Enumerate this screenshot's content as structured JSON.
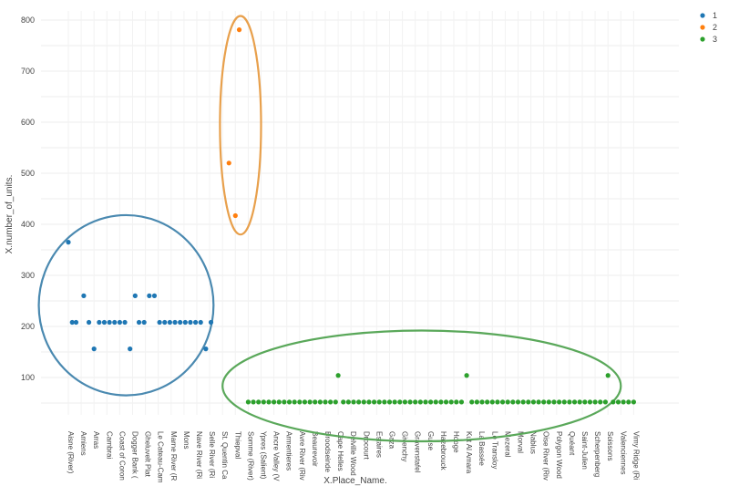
{
  "chart_data": {
    "type": "scatter",
    "xlabel": "X.Place_Name.",
    "ylabel": "X.number_of_units.",
    "ylim": [
      0,
      810
    ],
    "yticks": [
      100,
      200,
      300,
      400,
      500,
      600,
      700,
      800
    ],
    "grid": true,
    "legend_position": "top-right",
    "categories": [
      "Aisne (River)",
      "Amiens",
      "Arras",
      "Cambrai",
      "Coast of Coron",
      "Dogger Bank (",
      "Gheluvelt Plat",
      "Le Cateau-Cam",
      "Marne River (R",
      "Mons",
      "Nave River (Ri",
      "Selle River (Ri",
      "St. Quentin Ca",
      "Thiepval",
      "Somme (River)",
      "Ypres (Salient)",
      "Ancre Valley (V",
      "Armentieres",
      "Avre River (Riv",
      "Beaurevoir",
      "Broodseinde",
      "Cape Helles",
      "Delville Wood",
      "Drocourt",
      "Estaires",
      "Gaza",
      "Givenchy",
      "Gravenstafel",
      "Guise",
      "Hazebrouck",
      "Hooge",
      "Kut Al Amara",
      "La Bassée",
      "Le Transloy",
      "Mezeral",
      "Morval",
      "Nablus",
      "Oise River (Riv",
      "Polygon Wood",
      "Quéant",
      "Saint-Julien",
      "Scherpenberg",
      "Soissons",
      "Valenciennes",
      "Vimy Ridge (Ri"
    ],
    "series": [
      {
        "name": "1",
        "color": "#1f77b4",
        "points": [
          {
            "x": 0.0,
            "y": 365
          },
          {
            "x": 0.3,
            "y": 208
          },
          {
            "x": 0.6,
            "y": 208
          },
          {
            "x": 1.2,
            "y": 260
          },
          {
            "x": 1.6,
            "y": 208
          },
          {
            "x": 2.0,
            "y": 156
          },
          {
            "x": 2.4,
            "y": 208
          },
          {
            "x": 2.8,
            "y": 208
          },
          {
            "x": 3.2,
            "y": 208
          },
          {
            "x": 3.6,
            "y": 208
          },
          {
            "x": 4.0,
            "y": 208
          },
          {
            "x": 4.4,
            "y": 208
          },
          {
            "x": 4.8,
            "y": 156
          },
          {
            "x": 5.2,
            "y": 260
          },
          {
            "x": 5.5,
            "y": 208
          },
          {
            "x": 5.9,
            "y": 208
          },
          {
            "x": 6.3,
            "y": 260
          },
          {
            "x": 6.7,
            "y": 260
          },
          {
            "x": 7.1,
            "y": 208
          },
          {
            "x": 7.5,
            "y": 208
          },
          {
            "x": 7.9,
            "y": 208
          },
          {
            "x": 8.3,
            "y": 208
          },
          {
            "x": 8.7,
            "y": 208
          },
          {
            "x": 9.1,
            "y": 208
          },
          {
            "x": 9.5,
            "y": 208
          },
          {
            "x": 9.9,
            "y": 208
          },
          {
            "x": 10.3,
            "y": 208
          },
          {
            "x": 10.7,
            "y": 156
          },
          {
            "x": 11.1,
            "y": 208
          }
        ]
      },
      {
        "name": "2",
        "color": "#ff7f0e",
        "points": [
          {
            "x": 12.5,
            "y": 520
          },
          {
            "x": 13.0,
            "y": 417
          },
          {
            "x": 13.3,
            "y": 781
          }
        ]
      },
      {
        "name": "3",
        "color": "#2ca02c",
        "points": [
          {
            "x": 14.0,
            "y": 52
          },
          {
            "x": 14.4,
            "y": 52
          },
          {
            "x": 14.8,
            "y": 52
          },
          {
            "x": 15.2,
            "y": 52
          },
          {
            "x": 15.6,
            "y": 52
          },
          {
            "x": 16.0,
            "y": 52
          },
          {
            "x": 16.4,
            "y": 52
          },
          {
            "x": 16.8,
            "y": 52
          },
          {
            "x": 17.2,
            "y": 52
          },
          {
            "x": 17.6,
            "y": 52
          },
          {
            "x": 18.0,
            "y": 52
          },
          {
            "x": 18.4,
            "y": 52
          },
          {
            "x": 18.8,
            "y": 52
          },
          {
            "x": 19.2,
            "y": 52
          },
          {
            "x": 19.6,
            "y": 52
          },
          {
            "x": 20.0,
            "y": 52
          },
          {
            "x": 20.4,
            "y": 52
          },
          {
            "x": 20.8,
            "y": 52
          },
          {
            "x": 21.0,
            "y": 104
          },
          {
            "x": 21.4,
            "y": 52
          },
          {
            "x": 21.8,
            "y": 52
          },
          {
            "x": 22.2,
            "y": 52
          },
          {
            "x": 22.6,
            "y": 52
          },
          {
            "x": 23.0,
            "y": 52
          },
          {
            "x": 23.4,
            "y": 52
          },
          {
            "x": 23.8,
            "y": 52
          },
          {
            "x": 24.2,
            "y": 52
          },
          {
            "x": 24.6,
            "y": 52
          },
          {
            "x": 25.0,
            "y": 52
          },
          {
            "x": 25.4,
            "y": 52
          },
          {
            "x": 25.8,
            "y": 52
          },
          {
            "x": 26.2,
            "y": 52
          },
          {
            "x": 26.6,
            "y": 52
          },
          {
            "x": 27.0,
            "y": 52
          },
          {
            "x": 27.4,
            "y": 52
          },
          {
            "x": 27.8,
            "y": 52
          },
          {
            "x": 28.2,
            "y": 52
          },
          {
            "x": 28.6,
            "y": 52
          },
          {
            "x": 29.0,
            "y": 52
          },
          {
            "x": 29.4,
            "y": 52
          },
          {
            "x": 29.8,
            "y": 52
          },
          {
            "x": 30.2,
            "y": 52
          },
          {
            "x": 30.6,
            "y": 52
          },
          {
            "x": 31.0,
            "y": 104
          },
          {
            "x": 31.4,
            "y": 52
          },
          {
            "x": 31.8,
            "y": 52
          },
          {
            "x": 32.2,
            "y": 52
          },
          {
            "x": 32.6,
            "y": 52
          },
          {
            "x": 33.0,
            "y": 52
          },
          {
            "x": 33.4,
            "y": 52
          },
          {
            "x": 33.8,
            "y": 52
          },
          {
            "x": 34.2,
            "y": 52
          },
          {
            "x": 34.6,
            "y": 52
          },
          {
            "x": 35.0,
            "y": 52
          },
          {
            "x": 35.4,
            "y": 52
          },
          {
            "x": 35.8,
            "y": 52
          },
          {
            "x": 36.2,
            "y": 52
          },
          {
            "x": 36.6,
            "y": 52
          },
          {
            "x": 37.0,
            "y": 52
          },
          {
            "x": 37.4,
            "y": 52
          },
          {
            "x": 37.8,
            "y": 52
          },
          {
            "x": 38.2,
            "y": 52
          },
          {
            "x": 38.6,
            "y": 52
          },
          {
            "x": 39.0,
            "y": 52
          },
          {
            "x": 39.4,
            "y": 52
          },
          {
            "x": 39.8,
            "y": 52
          },
          {
            "x": 40.2,
            "y": 52
          },
          {
            "x": 40.6,
            "y": 52
          },
          {
            "x": 41.0,
            "y": 52
          },
          {
            "x": 41.4,
            "y": 52
          },
          {
            "x": 41.8,
            "y": 52
          },
          {
            "x": 42.0,
            "y": 104
          },
          {
            "x": 42.4,
            "y": 52
          },
          {
            "x": 42.8,
            "y": 52
          },
          {
            "x": 43.2,
            "y": 52
          },
          {
            "x": 43.6,
            "y": 52
          },
          {
            "x": 44.0,
            "y": 52
          }
        ]
      }
    ],
    "annotations": [
      {
        "type": "ellipse",
        "series": "1",
        "color": "#4a89b0",
        "x_range": [
          -2.3,
          11.3
        ],
        "y_range": [
          65,
          418
        ]
      },
      {
        "type": "ellipse",
        "series": "2",
        "color": "#e8a04c",
        "x_range": [
          11.8,
          15.0
        ],
        "y_range": [
          380,
          808
        ]
      },
      {
        "type": "ellipse",
        "series": "3",
        "color": "#5aa85a",
        "x_range": [
          12.0,
          43.0
        ],
        "y_range": [
          -25,
          192
        ]
      }
    ]
  }
}
